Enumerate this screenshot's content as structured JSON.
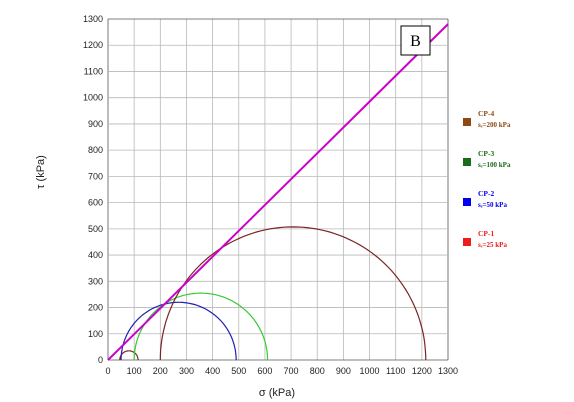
{
  "chart_data": {
    "type": "scatter",
    "xlabel": "σ   (kPa)",
    "ylabel": "τ  (kPa)",
    "xlim": [
      0,
      1300
    ],
    "ylim": [
      0,
      1300
    ],
    "x_ticks": [
      0,
      100,
      200,
      300,
      400,
      500,
      600,
      700,
      800,
      900,
      1000,
      1100,
      1200,
      1300
    ],
    "y_ticks": [
      0,
      100,
      200,
      300,
      400,
      500,
      600,
      700,
      800,
      900,
      1000,
      1100,
      1200,
      1300
    ],
    "grid": true,
    "panel_label": "B",
    "legend_position": "right",
    "envelope": {
      "c": 0,
      "slope": 0.985,
      "color": "#cc00cc"
    },
    "circles": [
      {
        "sigma3": 45,
        "sigma1": 115,
        "color": "#7a2e1e"
      },
      {
        "sigma3": 50,
        "sigma1": 490,
        "color": "#1f1fb3"
      },
      {
        "sigma3": 100,
        "sigma1": 610,
        "color": "#33cc33"
      },
      {
        "sigma3": 200,
        "sigma1": 1215,
        "color": "#7a2626"
      }
    ],
    "legend": [
      {
        "name": "CP-4",
        "sub": "sₑ=200 kPa",
        "color": "#8b4a12"
      },
      {
        "name": "CP-3",
        "sub": "sₑ=100 kPa",
        "color": "#1a6b1a"
      },
      {
        "name": "CP-2",
        "sub": "sₑ=50 kPa",
        "color": "#0000ee"
      },
      {
        "name": "CP-1",
        "sub": "sₑ=25 kPa",
        "color": "#ee1c1c"
      }
    ]
  }
}
